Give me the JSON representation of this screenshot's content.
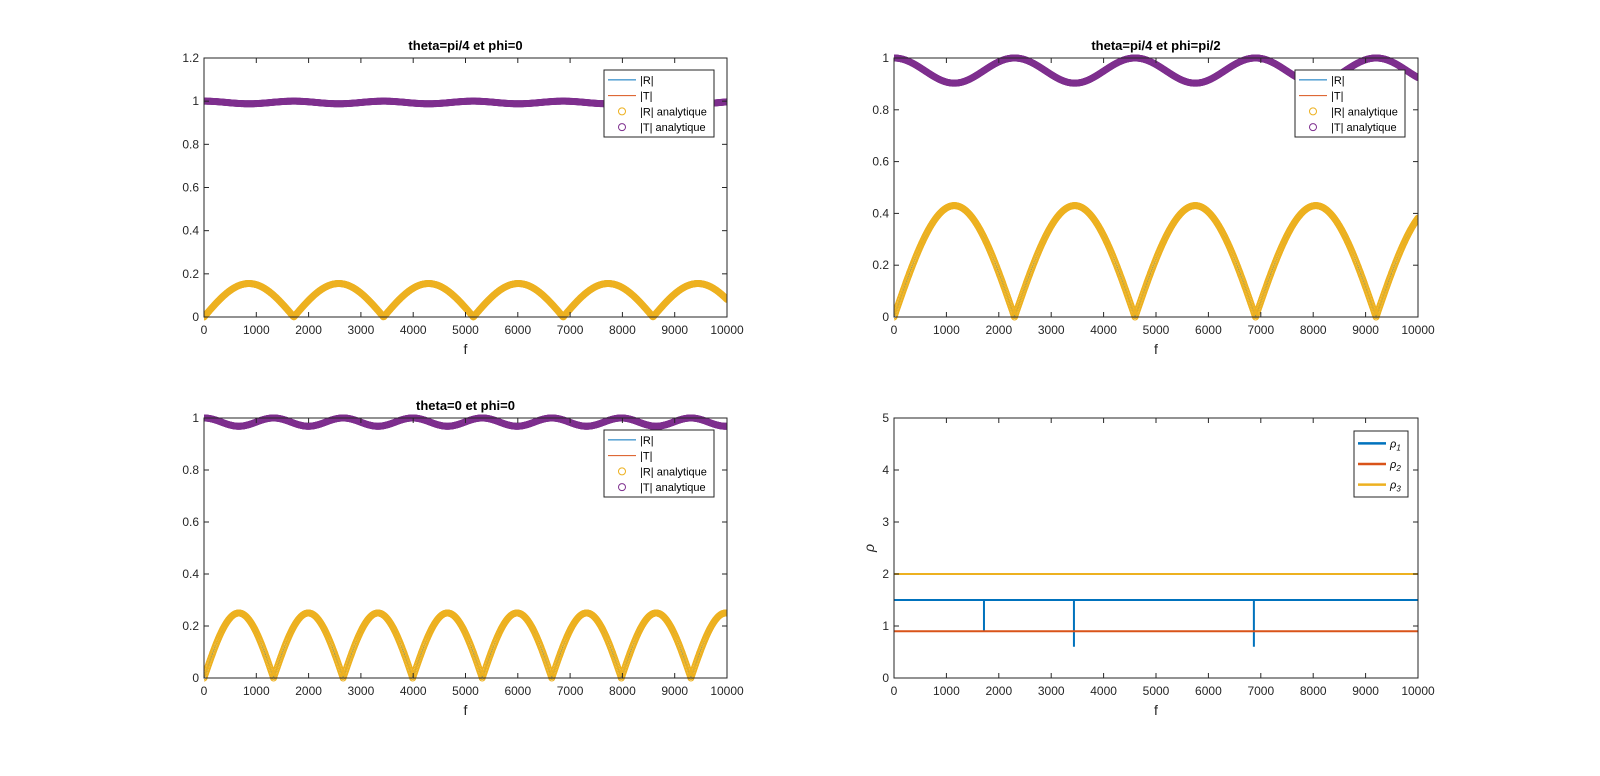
{
  "colors": {
    "R": "#0072BD",
    "T": "#D95319",
    "Ran": "#EDB120",
    "Tan": "#7E2F8E",
    "axis": "#262626"
  },
  "chart_data": [
    {
      "type": "scatter",
      "title": "theta=pi/4 et phi=0",
      "xlabel": "f",
      "ylabel": "",
      "xlim": [
        0,
        10000
      ],
      "ylim": [
        0,
        1.2
      ],
      "xticks": [
        "0",
        "1000",
        "2000",
        "3000",
        "4000",
        "5000",
        "6000",
        "7000",
        "8000",
        "9000",
        "10000"
      ],
      "yticks": [
        "0",
        "0.2",
        "0.4",
        "0.6",
        "0.8",
        "1",
        "1.2"
      ],
      "legend": {
        "position": "top-right",
        "entries": [
          "|R|",
          "|T|",
          "|R| analytique",
          "|T| analytique"
        ]
      },
      "series": [
        {
          "name": "|R|",
          "style": "line",
          "color": "R",
          "model": "R",
          "amp": 0.155,
          "zeros_at": 1717
        },
        {
          "name": "|T|",
          "style": "line",
          "color": "T",
          "model": "T",
          "amp": 0.155,
          "zeros_at": 1717
        },
        {
          "name": "|R| analytique",
          "style": "circles",
          "color": "Ran",
          "model": "R",
          "amp": 0.155,
          "zeros_at": 1717
        },
        {
          "name": "|T| analytique",
          "style": "circles",
          "color": "Tan",
          "model": "T",
          "amp": 0.155,
          "zeros_at": 1717
        }
      ]
    },
    {
      "type": "scatter",
      "title": "theta=pi/4 et phi=pi/2",
      "xlabel": "f",
      "ylabel": "",
      "xlim": [
        0,
        10000
      ],
      "ylim": [
        0,
        1
      ],
      "xticks": [
        "0",
        "1000",
        "2000",
        "3000",
        "4000",
        "5000",
        "6000",
        "7000",
        "8000",
        "9000",
        "10000"
      ],
      "yticks": [
        "0",
        "0.2",
        "0.4",
        "0.6",
        "0.8",
        "1"
      ],
      "legend": {
        "position": "top-right",
        "entries": [
          "|R|",
          "|T|",
          "|R| analytique",
          "|T| analytique"
        ]
      },
      "series": [
        {
          "name": "|R|",
          "style": "line",
          "color": "R",
          "model": "R",
          "amp": 0.43,
          "zeros_at": 2300
        },
        {
          "name": "|T|",
          "style": "line",
          "color": "T",
          "model": "T",
          "amp": 0.43,
          "zeros_at": 2300
        },
        {
          "name": "|R| analytique",
          "style": "circles",
          "color": "Ran",
          "model": "R",
          "amp": 0.43,
          "zeros_at": 2300
        },
        {
          "name": "|T| analytique",
          "style": "circles",
          "color": "Tan",
          "model": "T",
          "amp": 0.43,
          "zeros_at": 2300
        }
      ]
    },
    {
      "type": "scatter",
      "title": "theta=0 et phi=0",
      "xlabel": "f",
      "ylabel": "",
      "xlim": [
        0,
        10000
      ],
      "ylim": [
        0,
        1
      ],
      "xticks": [
        "0",
        "1000",
        "2000",
        "3000",
        "4000",
        "5000",
        "6000",
        "7000",
        "8000",
        "9000",
        "10000"
      ],
      "yticks": [
        "0",
        "0.2",
        "0.4",
        "0.6",
        "0.8",
        "1"
      ],
      "legend": {
        "position": "top-right",
        "entries": [
          "|R|",
          "|T|",
          "|R| analytique",
          "|T| analytique"
        ]
      },
      "series": [
        {
          "name": "|R|",
          "style": "line",
          "color": "R",
          "model": "R",
          "amp": 0.25,
          "zeros_at": 1330
        },
        {
          "name": "|T|",
          "style": "line",
          "color": "T",
          "model": "T",
          "amp": 0.25,
          "zeros_at": 1330
        },
        {
          "name": "|R| analytique",
          "style": "circles",
          "color": "Ran",
          "model": "R",
          "amp": 0.25,
          "zeros_at": 1330
        },
        {
          "name": "|T| analytique",
          "style": "circles",
          "color": "Tan",
          "model": "T",
          "amp": 0.25,
          "zeros_at": 1330
        }
      ]
    },
    {
      "type": "line",
      "title": "",
      "xlabel": "f",
      "ylabel": "ρ",
      "xlim": [
        0,
        10000
      ],
      "ylim": [
        0,
        5
      ],
      "xticks": [
        "0",
        "1000",
        "2000",
        "3000",
        "4000",
        "5000",
        "6000",
        "7000",
        "8000",
        "9000",
        "10000"
      ],
      "yticks": [
        "0",
        "1",
        "2",
        "3",
        "4",
        "5"
      ],
      "legend": {
        "position": "top-right",
        "entries": [
          "ρ1",
          "ρ2",
          "ρ3"
        ]
      },
      "series": [
        {
          "name": "ρ1",
          "color": "R",
          "x": [
            0,
            1717,
            1717,
            1717,
            3434,
            3434,
            3434,
            6868,
            6868,
            6868,
            10000
          ],
          "y": [
            1.5,
            1.5,
            0.9,
            1.5,
            1.5,
            0.6,
            1.5,
            1.5,
            0.6,
            1.5,
            1.5
          ]
        },
        {
          "name": "ρ2",
          "color": "T",
          "x": [
            0,
            10000
          ],
          "y": [
            0.9,
            0.9
          ]
        },
        {
          "name": "ρ3",
          "color": "Ran",
          "x": [
            0,
            10000
          ],
          "y": [
            2.0,
            2.0
          ]
        }
      ]
    }
  ]
}
